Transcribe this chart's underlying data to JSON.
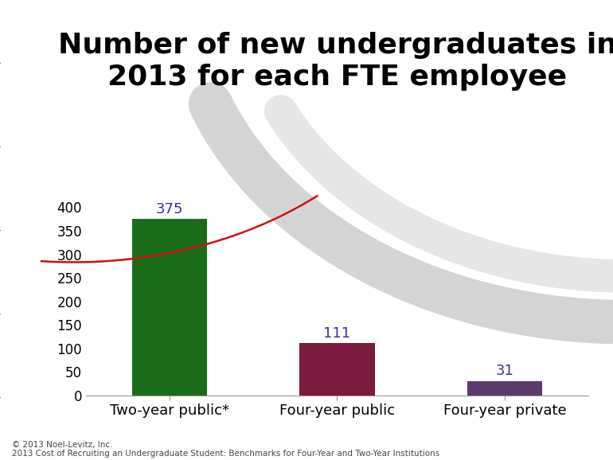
{
  "title": "Number of new undergraduates in\n2013 for each FTE employee",
  "categories": [
    "Two-year public*",
    "Four-year public",
    "Four-year private"
  ],
  "values": [
    375,
    111,
    31
  ],
  "bar_colors": [
    "#1a6b1a",
    "#7b1a3c",
    "#5b3a6e"
  ],
  "ylim": [
    0,
    420
  ],
  "yticks": [
    0,
    50,
    100,
    150,
    200,
    250,
    300,
    350,
    400
  ],
  "value_labels": [
    "375",
    "111",
    "31"
  ],
  "value_label_color": "#333399",
  "footer_line1": "© 2013 Noel-Levitz, Inc.",
  "footer_line2": "2013 Cost of Recruiting an Undergraduate Student: Benchmarks for Four-Year and Two-Year Institutions",
  "title_fontsize": 26,
  "label_fontsize": 13,
  "tick_fontsize": 12,
  "footer_fontsize": 7.5,
  "bg_color": "#ffffff",
  "bar_width": 0.45,
  "arc1_color": "#d4d4d4",
  "arc1_lw": 40,
  "arc2_color": "#e6e6e6",
  "arc2_lw": 30,
  "red_arc_color": "#cc1111",
  "red_arc_lw": 1.8
}
